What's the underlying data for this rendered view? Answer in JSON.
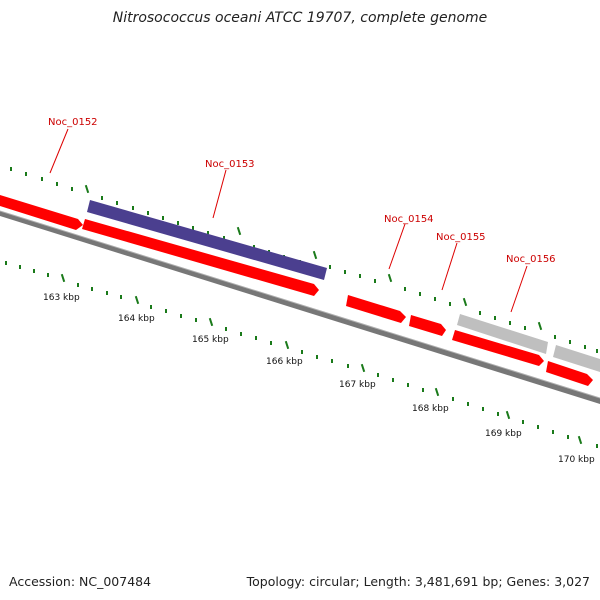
{
  "title": "Nitrosococcus oceani ATCC 19707, complete genome",
  "accession_text": "Accession: NC_007484",
  "summary_text": "Topology: circular; Length: 3,481,691 bp; Genes: 3,027",
  "colors": {
    "forward_feature": "#ff0000",
    "reverse_feature": "#ff0000",
    "highlight_feature": "#4b3f8f",
    "gray_feature": "#bfbfbf",
    "backbone": "#777777",
    "tick": "#1a7a1a",
    "label_line": "#dd0000",
    "label_text": "#cc0000"
  },
  "scale_labels": [
    "163 kbp",
    "164 kbp",
    "165 kbp",
    "166 kbp",
    "167 kbp",
    "168 kbp",
    "169 kbp",
    "170 kbp"
  ],
  "genes": [
    {
      "name": "Noc_0152",
      "track": "forward",
      "style": "forward_feature"
    },
    {
      "name": "Noc_0153",
      "track": "forward",
      "style": "highlight_feature"
    },
    {
      "name": "Noc_0154",
      "track": "reverse",
      "style": "forward_feature"
    },
    {
      "name": "Noc_0155",
      "track": "reverse",
      "style": "forward_feature"
    },
    {
      "name": "Noc_0156",
      "track": "forward",
      "style": "gray_feature"
    }
  ]
}
